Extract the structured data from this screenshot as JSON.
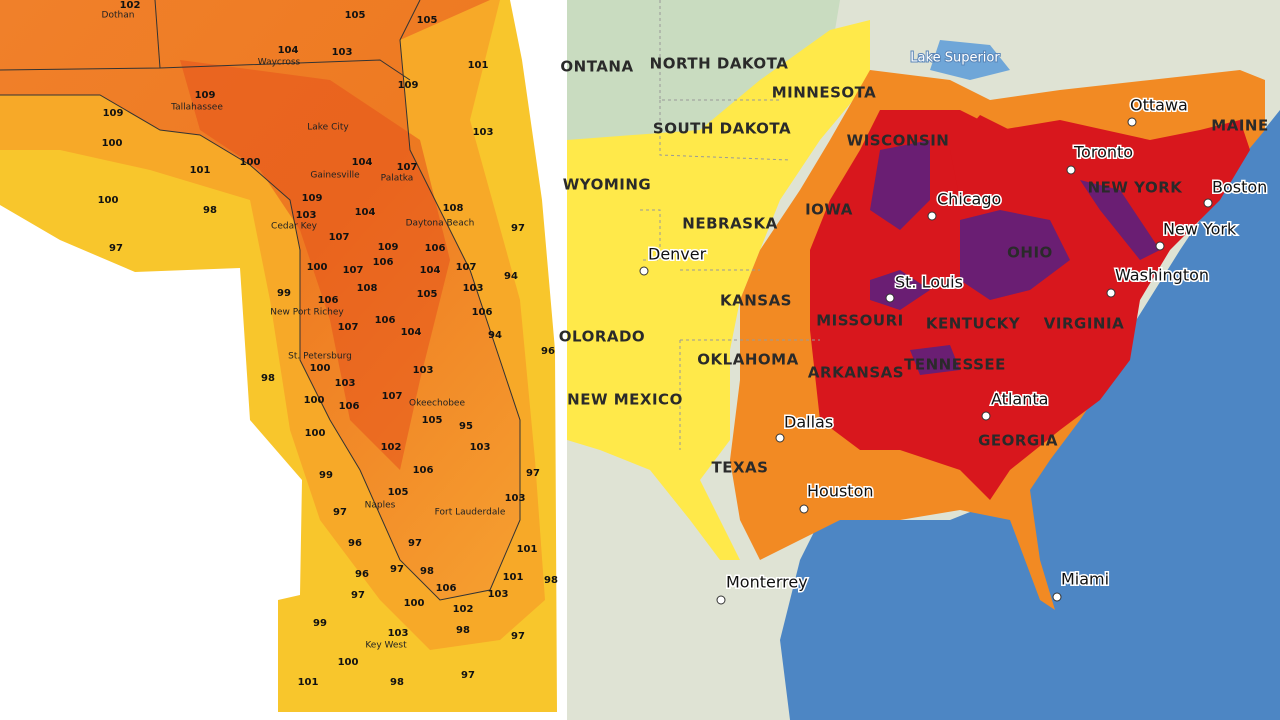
{
  "florida_map": {
    "temperature_labels": [
      102,
      105,
      105,
      104,
      103,
      101,
      109,
      109,
      109,
      103,
      100,
      101,
      100,
      104,
      107,
      109,
      104,
      108,
      103,
      107,
      109,
      106,
      97,
      97,
      98,
      100,
      106,
      107,
      104,
      107,
      94,
      100,
      108,
      105,
      103,
      99,
      106,
      106,
      107,
      106,
      104,
      94,
      100,
      103,
      107,
      103,
      96,
      98,
      100,
      106,
      105,
      95,
      100,
      103,
      102,
      106,
      97,
      99,
      105,
      103,
      97,
      96,
      97,
      101,
      96,
      97,
      98,
      101,
      97,
      106,
      100,
      103,
      102,
      98,
      99,
      103,
      98,
      97,
      100,
      101,
      98,
      97
    ],
    "place_labels": [
      "Dothan",
      "Waycross",
      "Tallahassee",
      "Lake City",
      "Gainesville",
      "Palatka",
      "Daytona Beach",
      "Cedar Key",
      "New Port Richey",
      "St. Petersburg",
      "Okeechobee",
      "Naples",
      "Fort Lauderdale",
      "Key West"
    ]
  },
  "us_map": {
    "region_labels": [
      "NORTH DAKOTA",
      "MINNESOTA",
      "SOUTH DAKOTA",
      "WISCONSIN",
      "ONTANA",
      "WYOMING",
      "NEBRASKA",
      "IOWA",
      "KANSAS",
      "MISSOURI",
      "KENTUCKY",
      "OHIO",
      "VIRGINIA",
      "OKLAHOMA",
      "ARKANSAS",
      "TENNESSEE",
      "OLORADO",
      "NEW MEXICO",
      "TEXAS",
      "GEORGIA",
      "NEW YORK",
      "MAINE"
    ],
    "place_labels": [
      "Lake Superior",
      "Ottawa",
      "Toronto",
      "Boston",
      "Chicago",
      "New York",
      "Denver",
      "St. Louis",
      "Washington",
      "Atlanta",
      "Dallas",
      "Houston",
      "Monterrey",
      "Miami"
    ]
  }
}
